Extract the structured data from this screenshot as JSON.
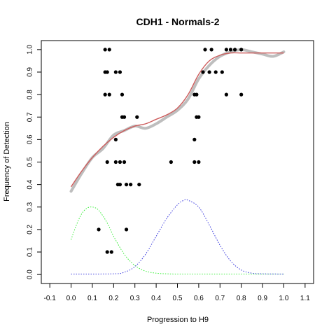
{
  "chart_data": {
    "type": "scatter",
    "title": "CDH1 - Normals-2",
    "xlabel": "Progression to H9",
    "ylabel": "Frequency of Detection",
    "xlim": [
      -0.14,
      1.14
    ],
    "ylim": [
      -0.04,
      1.04
    ],
    "xticks": [
      "-0.1",
      "0.0",
      "0.1",
      "0.2",
      "0.3",
      "0.4",
      "0.5",
      "0.6",
      "0.7",
      "0.8",
      "0.9",
      "1.0",
      "1.1"
    ],
    "yticks": [
      "0.0",
      "0.1",
      "0.2",
      "0.3",
      "0.4",
      "0.5",
      "0.6",
      "0.7",
      "0.8",
      "0.9",
      "1.0"
    ],
    "grid": false,
    "legend": "none",
    "colors": {
      "points": "#000000",
      "smoothed": "#bebebe",
      "fit": "#cd5c5c",
      "density1": "#33ee33",
      "density2": "#3333dd"
    },
    "series": [
      {
        "type": "scatter",
        "points": [
          [
            0.16,
            1.0
          ],
          [
            0.18,
            1.0
          ],
          [
            0.16,
            0.9
          ],
          [
            0.17,
            0.9
          ],
          [
            0.21,
            0.9
          ],
          [
            0.23,
            0.9
          ],
          [
            0.16,
            0.8
          ],
          [
            0.18,
            0.8
          ],
          [
            0.24,
            0.8
          ],
          [
            0.24,
            0.7
          ],
          [
            0.25,
            0.7
          ],
          [
            0.31,
            0.7
          ],
          [
            0.21,
            0.6
          ],
          [
            0.17,
            0.5
          ],
          [
            0.21,
            0.5
          ],
          [
            0.23,
            0.5
          ],
          [
            0.25,
            0.5
          ],
          [
            0.22,
            0.4
          ],
          [
            0.23,
            0.4
          ],
          [
            0.26,
            0.4
          ],
          [
            0.28,
            0.4
          ],
          [
            0.32,
            0.4
          ],
          [
            0.13,
            0.2
          ],
          [
            0.26,
            0.2
          ],
          [
            0.17,
            0.1
          ],
          [
            0.19,
            0.1
          ],
          [
            0.47,
            0.5
          ],
          [
            0.58,
            0.5
          ],
          [
            0.6,
            0.5
          ],
          [
            0.58,
            0.6
          ],
          [
            0.59,
            0.7
          ],
          [
            0.6,
            0.7
          ],
          [
            0.58,
            0.8
          ],
          [
            0.59,
            0.8
          ],
          [
            0.62,
            0.9
          ],
          [
            0.65,
            0.9
          ],
          [
            0.68,
            0.9
          ],
          [
            0.71,
            0.9
          ],
          [
            0.63,
            1.0
          ],
          [
            0.66,
            1.0
          ],
          [
            0.73,
            1.0
          ],
          [
            0.75,
            1.0
          ],
          [
            0.77,
            1.0
          ],
          [
            0.8,
            1.0
          ],
          [
            0.73,
            0.8
          ],
          [
            0.8,
            0.8
          ]
        ]
      },
      {
        "type": "line",
        "role": "smoothed",
        "x": [
          0.0,
          0.05,
          0.1,
          0.15,
          0.2,
          0.25,
          0.3,
          0.35,
          0.4,
          0.45,
          0.5,
          0.55,
          0.6,
          0.65,
          0.7,
          0.75,
          0.8,
          0.85,
          0.9,
          0.95,
          1.0
        ],
        "y": [
          0.37,
          0.45,
          0.52,
          0.56,
          0.62,
          0.64,
          0.66,
          0.65,
          0.67,
          0.7,
          0.73,
          0.78,
          0.87,
          0.93,
          0.97,
          0.99,
          1.0,
          0.99,
          0.98,
          0.97,
          0.99
        ]
      },
      {
        "type": "line",
        "role": "fit",
        "x": [
          0.0,
          0.05,
          0.1,
          0.15,
          0.2,
          0.25,
          0.3,
          0.35,
          0.4,
          0.45,
          0.5,
          0.55,
          0.6,
          0.65,
          0.7,
          0.75,
          0.8,
          0.85,
          0.9,
          0.95,
          1.0
        ],
        "y": [
          0.39,
          0.46,
          0.52,
          0.57,
          0.61,
          0.64,
          0.66,
          0.67,
          0.69,
          0.71,
          0.74,
          0.8,
          0.89,
          0.95,
          0.975,
          0.985,
          0.985,
          0.985,
          0.985,
          0.985,
          0.985
        ]
      },
      {
        "type": "line",
        "role": "density1",
        "x": [
          0.0,
          0.025,
          0.05,
          0.075,
          0.1,
          0.125,
          0.15,
          0.175,
          0.2,
          0.25,
          0.3,
          0.35,
          0.4,
          0.45,
          0.5,
          0.6,
          0.7,
          0.8,
          0.9,
          1.0
        ],
        "y": [
          0.155,
          0.22,
          0.27,
          0.295,
          0.3,
          0.29,
          0.26,
          0.22,
          0.17,
          0.09,
          0.04,
          0.015,
          0.006,
          0.003,
          0.002,
          0.002,
          0.002,
          0.002,
          0.002,
          0.002
        ]
      },
      {
        "type": "line",
        "role": "density2",
        "x": [
          0.0,
          0.2,
          0.25,
          0.3,
          0.35,
          0.4,
          0.45,
          0.5,
          0.53,
          0.55,
          0.6,
          0.65,
          0.7,
          0.75,
          0.8,
          0.85,
          0.9,
          1.0
        ],
        "y": [
          0.002,
          0.003,
          0.01,
          0.035,
          0.09,
          0.17,
          0.25,
          0.31,
          0.33,
          0.33,
          0.3,
          0.22,
          0.13,
          0.06,
          0.02,
          0.006,
          0.003,
          0.002
        ]
      }
    ]
  }
}
